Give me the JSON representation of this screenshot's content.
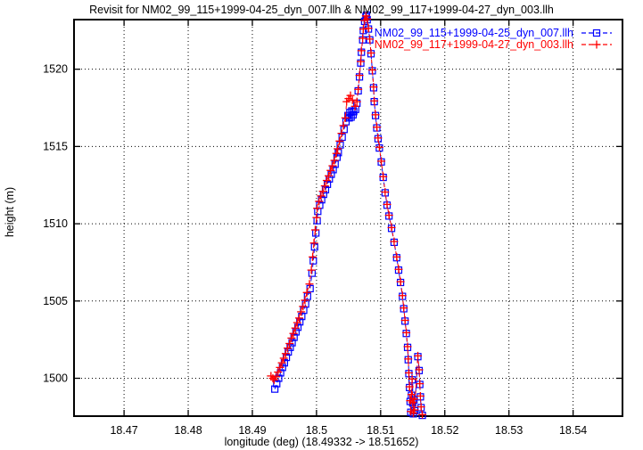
{
  "title": "Revisit for NM02_99_115+1999-04-25_dyn_007.llh & NM02_99_117+1999-04-27_dyn_003.llh",
  "chart_data": {
    "type": "scatter",
    "title": "Revisit for NM02_99_115+1999-04-25_dyn_007.llh & NM02_99_117+1999-04-27_dyn_003.llh",
    "xlabel": "longitude (deg) (18.49332 -> 18.51652)",
    "ylabel": "height (m)",
    "xlim": [
      18.4622,
      18.5477
    ],
    "ylim": [
      1497.55,
      1523.21
    ],
    "xticks": [
      18.47,
      18.48,
      18.49,
      18.5,
      18.51,
      18.52,
      18.53,
      18.54
    ],
    "xtick_labels": [
      "18.47",
      "18.48",
      "18.49",
      "18.5",
      "18.51",
      "18.52",
      "18.53",
      "18.54"
    ],
    "yticks": [
      1500,
      1505,
      1510,
      1515,
      1520
    ],
    "ytick_labels": [
      "1500",
      "1505",
      "1510",
      "1515",
      "1520"
    ],
    "grid": true,
    "grid_color": "#000000",
    "background": "#ffffff",
    "border_color": "#000000",
    "legend_position": "top-right-inside",
    "series": [
      {
        "name": "NM02_99_115+1999-04-25_dyn_007.llh",
        "color": "#0000ff",
        "marker": "square",
        "linestyle": "dashed",
        "points": [
          [
            18.4935,
            1499.3
          ],
          [
            18.4938,
            1499.65
          ],
          [
            18.4941,
            1500.0
          ],
          [
            18.4944,
            1500.35
          ],
          [
            18.4947,
            1500.7
          ],
          [
            18.495,
            1501.0
          ],
          [
            18.4953,
            1501.35
          ],
          [
            18.4956,
            1501.7
          ],
          [
            18.4959,
            1502.0
          ],
          [
            18.4962,
            1502.3
          ],
          [
            18.4965,
            1502.65
          ],
          [
            18.4968,
            1503.0
          ],
          [
            18.4971,
            1503.3
          ],
          [
            18.4974,
            1503.65
          ],
          [
            18.4977,
            1504.0
          ],
          [
            18.498,
            1504.4
          ],
          [
            18.4983,
            1504.8
          ],
          [
            18.4986,
            1505.3
          ],
          [
            18.499,
            1505.8
          ],
          [
            18.4993,
            1506.8
          ],
          [
            18.4995,
            1507.6
          ],
          [
            18.4997,
            1508.5
          ],
          [
            18.4999,
            1509.4
          ],
          [
            18.5001,
            1510.2
          ],
          [
            18.5002,
            1510.8
          ],
          [
            18.5005,
            1511.2
          ],
          [
            18.5008,
            1511.55
          ],
          [
            18.5011,
            1511.9
          ],
          [
            18.5014,
            1512.2
          ],
          [
            18.5017,
            1512.55
          ],
          [
            18.502,
            1512.9
          ],
          [
            18.5023,
            1513.2
          ],
          [
            18.5026,
            1513.5
          ],
          [
            18.5029,
            1513.85
          ],
          [
            18.5032,
            1514.3
          ],
          [
            18.5034,
            1514.6
          ],
          [
            18.5037,
            1515.1
          ],
          [
            18.504,
            1515.6
          ],
          [
            18.5043,
            1516.1
          ],
          [
            18.5046,
            1516.6
          ],
          [
            18.5049,
            1517.0
          ],
          [
            18.5051,
            1516.85
          ],
          [
            18.5052,
            1517.2
          ],
          [
            18.5054,
            1516.9
          ],
          [
            18.5055,
            1517.3
          ],
          [
            18.5057,
            1517.05
          ],
          [
            18.5058,
            1517.25
          ],
          [
            18.5061,
            1517.4
          ],
          [
            18.5063,
            1517.8
          ],
          [
            18.5065,
            1518.6
          ],
          [
            18.5067,
            1519.5
          ],
          [
            18.5069,
            1520.4
          ],
          [
            18.507,
            1521.1
          ],
          [
            18.5072,
            1521.9
          ],
          [
            18.5073,
            1522.5
          ],
          [
            18.5075,
            1523.1
          ],
          [
            18.5077,
            1523.4
          ],
          [
            18.5078,
            1523.5
          ],
          [
            18.5079,
            1523.2
          ],
          [
            18.5081,
            1522.6
          ],
          [
            18.5083,
            1521.9
          ],
          [
            18.5085,
            1521.0
          ],
          [
            18.5087,
            1519.9
          ],
          [
            18.5089,
            1518.8
          ],
          [
            18.509,
            1517.9
          ],
          [
            18.5092,
            1517.0
          ],
          [
            18.5094,
            1516.2
          ],
          [
            18.5096,
            1515.5
          ],
          [
            18.5098,
            1514.9
          ],
          [
            18.5101,
            1514.0
          ],
          [
            18.5104,
            1513.0
          ],
          [
            18.5107,
            1512.0
          ],
          [
            18.511,
            1511.2
          ],
          [
            18.5113,
            1510.5
          ],
          [
            18.5117,
            1509.7
          ],
          [
            18.5121,
            1508.8
          ],
          [
            18.5125,
            1507.8
          ],
          [
            18.5128,
            1507.0
          ],
          [
            18.5131,
            1506.2
          ],
          [
            18.5134,
            1505.3
          ],
          [
            18.5136,
            1504.5
          ],
          [
            18.5138,
            1503.7
          ],
          [
            18.514,
            1502.9
          ],
          [
            18.5142,
            1502.0
          ],
          [
            18.5143,
            1501.2
          ],
          [
            18.5144,
            1500.3
          ],
          [
            18.5145,
            1499.4
          ],
          [
            18.5146,
            1498.5
          ],
          [
            18.5147,
            1497.8
          ],
          [
            18.5148,
            1498.9
          ],
          [
            18.5149,
            1499.9
          ],
          [
            18.515,
            1498.4
          ],
          [
            18.5151,
            1497.7
          ],
          [
            18.5152,
            1498.6
          ],
          [
            18.5153,
            1497.9
          ],
          [
            18.5158,
            1501.4
          ],
          [
            18.516,
            1500.5
          ],
          [
            18.5161,
            1499.6
          ],
          [
            18.5162,
            1498.8
          ],
          [
            18.5163,
            1498.1
          ],
          [
            18.5165,
            1497.6
          ]
        ]
      },
      {
        "name": "NM02_99_117+1999-04-27_dyn_003.llh",
        "color": "#ff0000",
        "marker": "plus",
        "linestyle": "dashed",
        "points": [
          [
            18.4929,
            1500.15
          ],
          [
            18.4932,
            1500.0
          ],
          [
            18.4934,
            1499.9
          ],
          [
            18.4937,
            1500.1
          ],
          [
            18.494,
            1500.4
          ],
          [
            18.4943,
            1500.7
          ],
          [
            18.4946,
            1501.0
          ],
          [
            18.4949,
            1501.3
          ],
          [
            18.4952,
            1501.6
          ],
          [
            18.4955,
            1501.95
          ],
          [
            18.4958,
            1502.25
          ],
          [
            18.4961,
            1502.6
          ],
          [
            18.4964,
            1502.9
          ],
          [
            18.4967,
            1503.25
          ],
          [
            18.497,
            1503.6
          ],
          [
            18.4973,
            1503.9
          ],
          [
            18.4976,
            1504.3
          ],
          [
            18.4979,
            1504.65
          ],
          [
            18.4982,
            1505.05
          ],
          [
            18.4985,
            1505.55
          ],
          [
            18.4989,
            1506.1
          ],
          [
            18.4992,
            1507.0
          ],
          [
            18.4994,
            1507.85
          ],
          [
            18.4996,
            1508.75
          ],
          [
            18.4998,
            1509.6
          ],
          [
            18.5,
            1510.4
          ],
          [
            18.5001,
            1511.0
          ],
          [
            18.5004,
            1511.45
          ],
          [
            18.5007,
            1511.8
          ],
          [
            18.501,
            1512.1
          ],
          [
            18.5013,
            1512.45
          ],
          [
            18.5016,
            1512.8
          ],
          [
            18.5019,
            1513.1
          ],
          [
            18.5022,
            1513.45
          ],
          [
            18.5025,
            1513.75
          ],
          [
            18.5028,
            1514.1
          ],
          [
            18.5031,
            1514.55
          ],
          [
            18.5033,
            1514.85
          ],
          [
            18.5036,
            1515.35
          ],
          [
            18.5039,
            1515.85
          ],
          [
            18.5042,
            1516.35
          ],
          [
            18.5045,
            1516.85
          ],
          [
            18.5047,
            1517.9
          ],
          [
            18.505,
            1518.1
          ],
          [
            18.5053,
            1518.3
          ],
          [
            18.5056,
            1518.0
          ],
          [
            18.506,
            1517.6
          ],
          [
            18.5063,
            1517.9
          ],
          [
            18.5065,
            1518.7
          ],
          [
            18.5067,
            1519.6
          ],
          [
            18.5069,
            1520.5
          ],
          [
            18.507,
            1521.2
          ],
          [
            18.5072,
            1522.0
          ],
          [
            18.5073,
            1522.6
          ],
          [
            18.5075,
            1523.15
          ],
          [
            18.5077,
            1523.45
          ],
          [
            18.5079,
            1523.25
          ],
          [
            18.5081,
            1522.65
          ],
          [
            18.5083,
            1521.95
          ],
          [
            18.5085,
            1521.05
          ],
          [
            18.5087,
            1519.95
          ],
          [
            18.5089,
            1518.85
          ],
          [
            18.509,
            1517.95
          ],
          [
            18.5092,
            1517.05
          ],
          [
            18.5094,
            1516.25
          ],
          [
            18.5096,
            1515.55
          ],
          [
            18.5098,
            1514.95
          ],
          [
            18.5101,
            1514.05
          ],
          [
            18.5104,
            1513.05
          ],
          [
            18.5107,
            1512.05
          ],
          [
            18.511,
            1511.25
          ],
          [
            18.5113,
            1510.55
          ],
          [
            18.5117,
            1509.75
          ],
          [
            18.5121,
            1508.85
          ],
          [
            18.5125,
            1507.85
          ],
          [
            18.5128,
            1507.05
          ],
          [
            18.5131,
            1506.25
          ],
          [
            18.5134,
            1505.35
          ],
          [
            18.5136,
            1504.55
          ],
          [
            18.5138,
            1503.75
          ],
          [
            18.514,
            1502.95
          ],
          [
            18.5142,
            1502.05
          ],
          [
            18.5143,
            1501.25
          ],
          [
            18.5144,
            1500.35
          ],
          [
            18.5145,
            1499.45
          ],
          [
            18.5146,
            1498.55
          ],
          [
            18.5147,
            1497.85
          ],
          [
            18.5148,
            1498.95
          ],
          [
            18.5149,
            1499.95
          ],
          [
            18.515,
            1498.45
          ],
          [
            18.5151,
            1497.75
          ],
          [
            18.5152,
            1498.65
          ],
          [
            18.5153,
            1497.95
          ],
          [
            18.5158,
            1501.45
          ],
          [
            18.516,
            1500.55
          ],
          [
            18.5161,
            1499.65
          ],
          [
            18.5162,
            1498.85
          ],
          [
            18.5163,
            1498.15
          ],
          [
            18.5165,
            1497.65
          ]
        ]
      }
    ]
  }
}
